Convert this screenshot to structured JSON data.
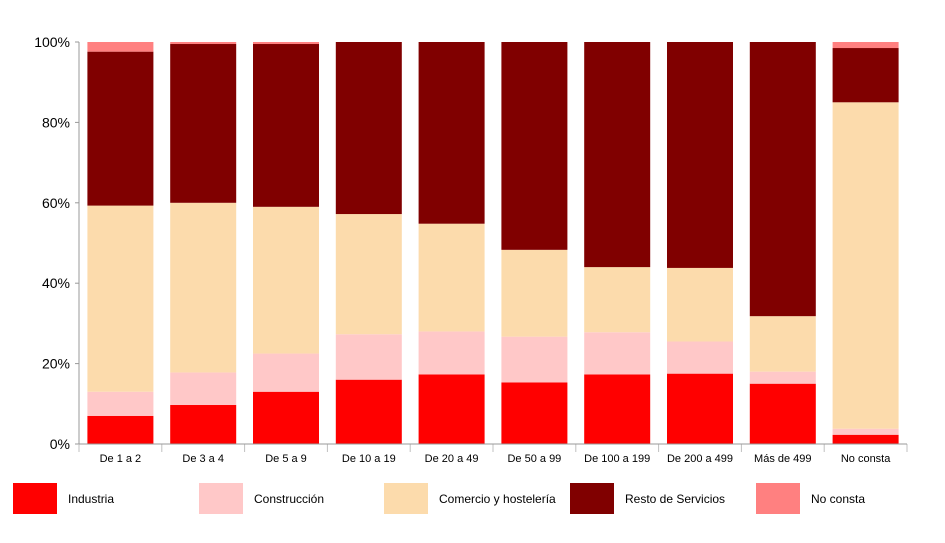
{
  "chart_data": {
    "type": "bar",
    "stacked": true,
    "percent": true,
    "categories": [
      "De 1 a 2",
      "De 3 a 4",
      "De 5 a 9",
      "De 10 a 19",
      "De 20 a 49",
      "De 50 a 99",
      "De 100 a 199",
      "De 200 a 499",
      "Más de 499",
      "No consta"
    ],
    "series": [
      {
        "name": "Industria",
        "color": "#ff0000",
        "values": [
          7,
          9.7,
          13,
          16,
          17.3,
          15.3,
          17.3,
          17.5,
          15,
          2.3
        ]
      },
      {
        "name": "Construcción",
        "color": "#ffc8c8",
        "values": [
          6,
          8.1,
          9.5,
          11.3,
          10.7,
          11.4,
          10.5,
          8,
          3,
          1.5
        ]
      },
      {
        "name": "Comercio y hostelería",
        "color": "#fcdbac",
        "values": [
          46.3,
          42.2,
          36.5,
          29.9,
          26.8,
          21.6,
          16.2,
          18.3,
          13.8,
          81.2
        ]
      },
      {
        "name": "Resto de Servicios",
        "color": "#800000",
        "values": [
          38.3,
          39.5,
          40.5,
          42.8,
          45.2,
          51.7,
          56,
          56.2,
          68.2,
          13.5
        ]
      },
      {
        "name": "No consta",
        "color": "#ff8080",
        "values": [
          2.4,
          0.5,
          0.5,
          0,
          0,
          0,
          0,
          0,
          0,
          1.5
        ]
      }
    ],
    "y_ticks": [
      "0%",
      "20%",
      "40%",
      "60%",
      "80%",
      "100%"
    ],
    "ylim": [
      0,
      100
    ],
    "grid": true,
    "legend_position": "bottom"
  }
}
